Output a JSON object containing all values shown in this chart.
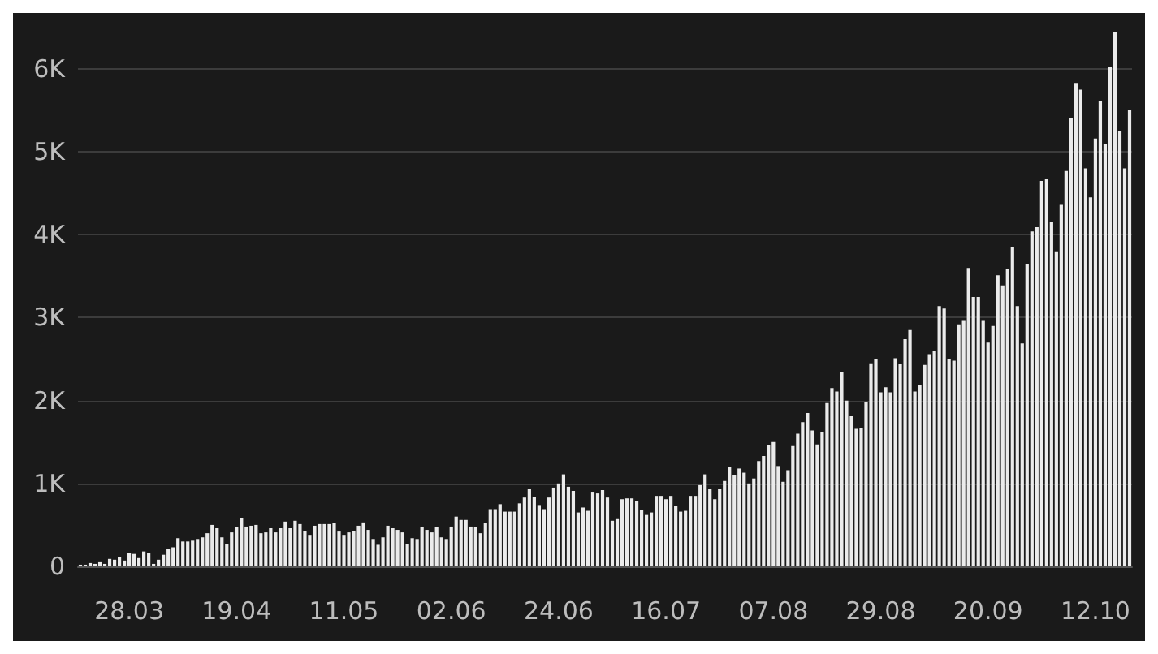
{
  "chart_data": {
    "type": "bar",
    "categories": [
      null,
      null,
      null,
      null,
      null,
      null,
      null,
      null,
      null,
      null,
      "28.03",
      null,
      null,
      null,
      null,
      null,
      null,
      null,
      null,
      null,
      null,
      null,
      null,
      null,
      null,
      null,
      null,
      null,
      null,
      null,
      null,
      null,
      "19.04",
      null,
      null,
      null,
      null,
      null,
      null,
      null,
      null,
      null,
      null,
      null,
      null,
      null,
      null,
      null,
      null,
      null,
      null,
      null,
      null,
      null,
      "11.05",
      null,
      null,
      null,
      null,
      null,
      null,
      null,
      null,
      null,
      null,
      null,
      null,
      null,
      null,
      null,
      null,
      null,
      null,
      null,
      null,
      null,
      "02.06",
      null,
      null,
      null,
      null,
      null,
      null,
      null,
      null,
      null,
      null,
      null,
      null,
      null,
      null,
      null,
      null,
      null,
      null,
      null,
      null,
      null,
      "24.06",
      null,
      null,
      null,
      null,
      null,
      null,
      null,
      null,
      null,
      null,
      null,
      null,
      null,
      null,
      null,
      null,
      null,
      null,
      null,
      null,
      null,
      "16.07",
      null,
      null,
      null,
      null,
      null,
      null,
      null,
      null,
      null,
      null,
      null,
      null,
      null,
      null,
      null,
      null,
      null,
      null,
      null,
      null,
      null,
      "07.08",
      null,
      null,
      null,
      null,
      null,
      null,
      null,
      null,
      null,
      null,
      null,
      null,
      null,
      null,
      null,
      null,
      null,
      null,
      null,
      null,
      null,
      "29.08",
      null,
      null,
      null,
      null,
      null,
      null,
      null,
      null,
      null,
      null,
      null,
      null,
      null,
      null,
      null,
      null,
      null,
      null,
      null,
      null,
      null,
      "20.09",
      null,
      null,
      null,
      null,
      null,
      null,
      null,
      null,
      null,
      null,
      null,
      null,
      null,
      null,
      null,
      null,
      null,
      null,
      null,
      null,
      null,
      "12.10",
      null,
      null,
      null,
      null,
      null,
      null,
      null
    ],
    "values": [
      20,
      20,
      40,
      30,
      50,
      30,
      90,
      80,
      110,
      70,
      160,
      150,
      100,
      180,
      160,
      30,
      80,
      140,
      210,
      230,
      340,
      300,
      300,
      310,
      330,
      350,
      400,
      500,
      460,
      350,
      270,
      410,
      470,
      580,
      480,
      490,
      500,
      400,
      410,
      460,
      410,
      460,
      540,
      460,
      550,
      510,
      430,
      380,
      490,
      510,
      510,
      510,
      520,
      420,
      380,
      410,
      430,
      490,
      530,
      440,
      330,
      260,
      350,
      490,
      460,
      440,
      410,
      270,
      340,
      330,
      470,
      440,
      410,
      470,
      350,
      330,
      480,
      600,
      560,
      560,
      480,
      470,
      400,
      520,
      690,
      690,
      750,
      660,
      660,
      660,
      760,
      830,
      930,
      840,
      740,
      690,
      830,
      950,
      1000,
      1110,
      960,
      910,
      650,
      710,
      670,
      900,
      880,
      920,
      830,
      550,
      570,
      810,
      820,
      820,
      790,
      680,
      620,
      650,
      850,
      850,
      810,
      850,
      730,
      660,
      670,
      850,
      850,
      980,
      1110,
      930,
      810,
      930,
      1030,
      1200,
      1100,
      1180,
      1130,
      1000,
      1060,
      1270,
      1330,
      1460,
      1500,
      1210,
      1020,
      1160,
      1450,
      1600,
      1740,
      1850,
      1640,
      1470,
      1620,
      1970,
      2150,
      2110,
      2340,
      2000,
      1810,
      1660,
      1670,
      1980,
      2450,
      2500,
      2100,
      2160,
      2100,
      2510,
      2440,
      2740,
      2850,
      2110,
      2190,
      2430,
      2560,
      2600,
      3140,
      3110,
      2500,
      2480,
      2920,
      2970,
      3600,
      3250,
      3250,
      2970,
      2700,
      2900,
      3510,
      3390,
      3590,
      3850,
      3140,
      2690,
      3650,
      4040,
      4090,
      4650,
      4670,
      4150,
      3800,
      4360,
      4770,
      5410,
      5830,
      5750,
      4800,
      4450,
      5160,
      5610,
      5090,
      6030,
      6440,
      5250,
      4800,
      5500
    ],
    "color": "#ebebeb",
    "ylim": [
      0,
      6440
    ],
    "yticks": [
      0,
      {
        "value": 1000,
        "label": "1K"
      },
      {
        "value": 2000,
        "label": "2K"
      },
      {
        "value": 3000,
        "label": "3K"
      },
      {
        "value": 4000,
        "label": "4K"
      },
      {
        "value": 5000,
        "label": "5K"
      },
      {
        "value": 6000,
        "label": "6K"
      }
    ],
    "grid": "y"
  }
}
